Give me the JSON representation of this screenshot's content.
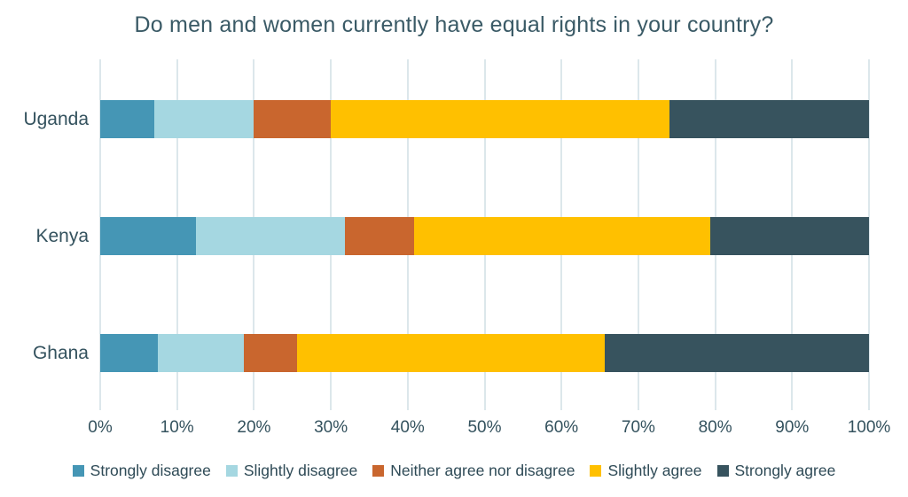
{
  "chart_data": {
    "type": "bar",
    "subtype": "horizontal-stacked-100",
    "title": "Do men and women currently have equal rights in your country?",
    "categories": [
      "Uganda",
      "Kenya",
      "Ghana"
    ],
    "series": [
      {
        "name": "Strongly disagree",
        "color": "#4596B5",
        "values": [
          7.0,
          12.5,
          7.5
        ]
      },
      {
        "name": "Slightly disagree",
        "color": "#A5D7E1",
        "values": [
          13.0,
          19.3,
          11.2
        ]
      },
      {
        "name": "Neither agree nor disagree",
        "color": "#C9662E",
        "values": [
          10.0,
          9.0,
          6.9
        ]
      },
      {
        "name": "Slightly agree",
        "color": "#FFC000",
        "values": [
          44.0,
          38.6,
          40.0
        ]
      },
      {
        "name": "Strongly agree",
        "color": "#37535E",
        "values": [
          26.0,
          20.6,
          34.4
        ]
      }
    ],
    "x_ticks": [
      "0%",
      "10%",
      "20%",
      "30%",
      "40%",
      "50%",
      "60%",
      "70%",
      "80%",
      "90%",
      "100%"
    ],
    "xlim": [
      0,
      100
    ],
    "xlabel": "",
    "ylabel": "",
    "grid": "vertical-only",
    "gridline_color": "#DCE7EB",
    "legend_position": "bottom",
    "background_color": "#FFFFFF",
    "title_color": "#3A5A66"
  }
}
